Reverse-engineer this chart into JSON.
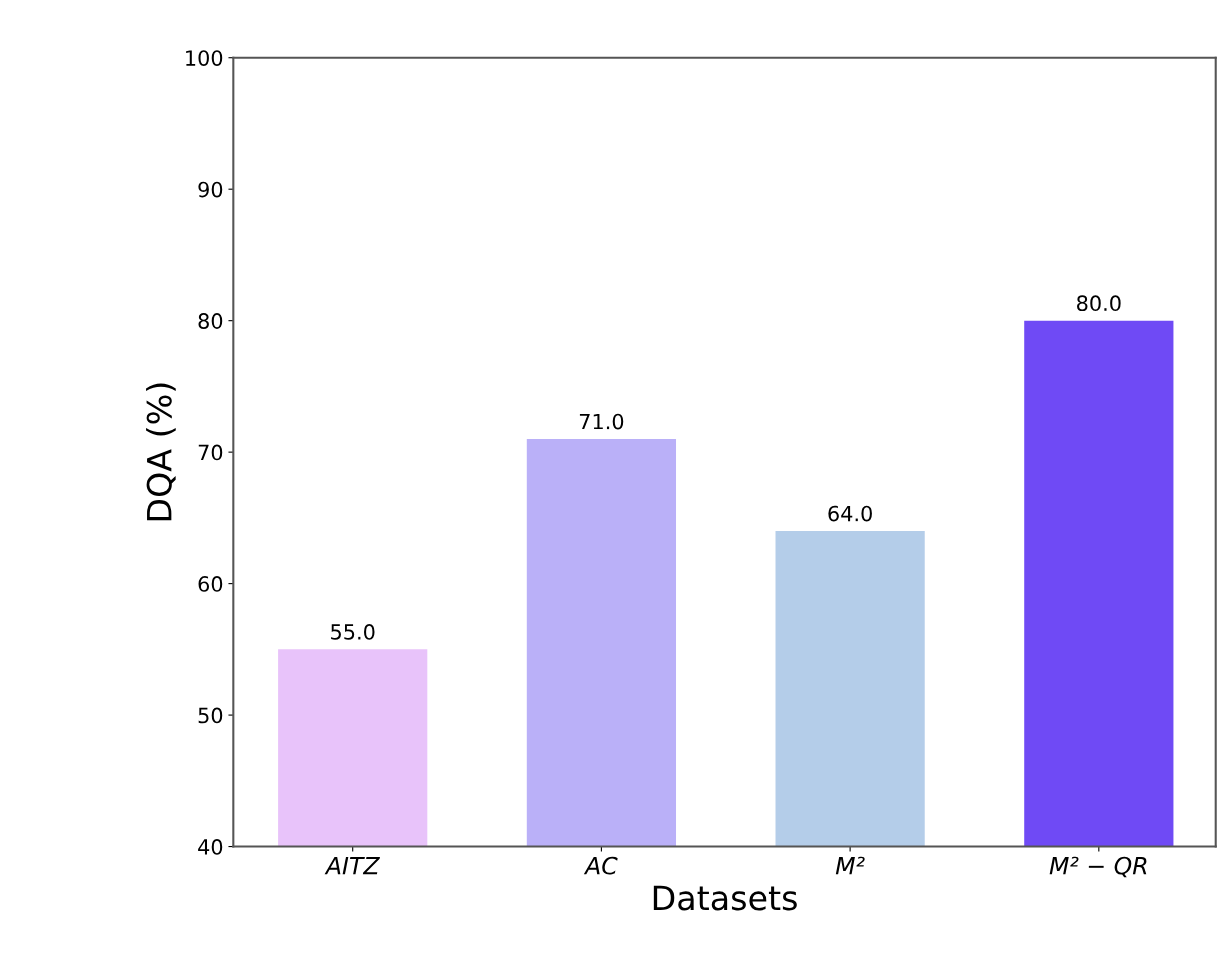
{
  "chart_data": {
    "type": "bar",
    "categories": [
      "AITZ",
      "AC",
      "M²",
      "M² − QR"
    ],
    "values": [
      55.0,
      71.0,
      64.0,
      80.0
    ],
    "colors": [
      "#e8c3fa",
      "#bab0f8",
      "#b4cde9",
      "#6f4af5"
    ],
    "xlabel": "Datasets",
    "ylabel": "DQA (%)",
    "ylim": [
      40,
      100
    ],
    "yticks": [
      40,
      50,
      60,
      70,
      80,
      90,
      100
    ],
    "value_labels": [
      "55.0",
      "71.0",
      "64.0",
      "80.0"
    ],
    "grid": false
  }
}
